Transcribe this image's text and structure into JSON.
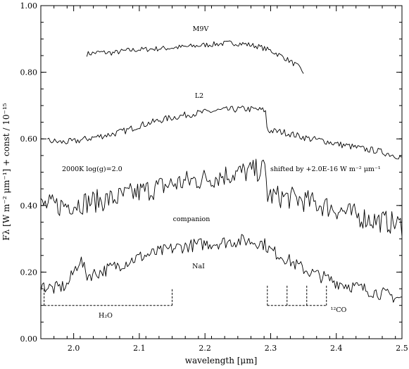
{
  "chart_data": {
    "type": "line",
    "title": "",
    "xlabel": "wavelength [μm]",
    "ylabel": "Fλ [W m⁻² μm⁻¹] + const / 10⁻¹⁵",
    "xlim": [
      1.95,
      2.5
    ],
    "ylim": [
      0.0,
      1.0
    ],
    "x_ticks": [
      2.0,
      2.1,
      2.2,
      2.3,
      2.4,
      2.5
    ],
    "x_tick_labels": [
      "2.0",
      "2.1",
      "2.2",
      "2.3",
      "2.4",
      "2.5"
    ],
    "y_ticks": [
      0.0,
      0.2,
      0.4,
      0.6,
      0.8,
      1.0
    ],
    "y_tick_labels": [
      "0.00",
      "0.20",
      "0.40",
      "0.60",
      "0.80",
      "1.00"
    ],
    "grid": false,
    "series": [
      {
        "name": "M9V",
        "x": [
          2.02,
          2.04,
          2.06,
          2.08,
          2.1,
          2.12,
          2.14,
          2.16,
          2.18,
          2.2,
          2.22,
          2.24,
          2.26,
          2.28,
          2.3,
          2.32,
          2.34,
          2.35
        ],
        "y": [
          0.855,
          0.86,
          0.858,
          0.865,
          0.868,
          0.87,
          0.872,
          0.875,
          0.878,
          0.882,
          0.885,
          0.888,
          0.885,
          0.878,
          0.865,
          0.845,
          0.82,
          0.8
        ],
        "noise": 0.008
      },
      {
        "name": "L2",
        "x": [
          1.96,
          1.98,
          2.0,
          2.02,
          2.04,
          2.06,
          2.08,
          2.1,
          2.12,
          2.14,
          2.16,
          2.18,
          2.2,
          2.22,
          2.24,
          2.26,
          2.28,
          2.292,
          2.295,
          2.32,
          2.34,
          2.36,
          2.38,
          2.4,
          2.42,
          2.44,
          2.46,
          2.48,
          2.5
        ],
        "y": [
          0.595,
          0.59,
          0.592,
          0.6,
          0.608,
          0.615,
          0.625,
          0.64,
          0.65,
          0.66,
          0.668,
          0.675,
          0.68,
          0.685,
          0.688,
          0.69,
          0.688,
          0.685,
          0.625,
          0.62,
          0.61,
          0.6,
          0.595,
          0.585,
          0.578,
          0.57,
          0.565,
          0.555,
          0.545
        ],
        "noise": 0.01
      },
      {
        "name": "2000K log(g)=2.0",
        "x": [
          1.95,
          1.98,
          2.0,
          2.02,
          2.04,
          2.06,
          2.08,
          2.1,
          2.12,
          2.14,
          2.16,
          2.18,
          2.2,
          2.22,
          2.24,
          2.26,
          2.28,
          2.292,
          2.295,
          2.32,
          2.34,
          2.36,
          2.38,
          2.4,
          2.42,
          2.44,
          2.46,
          2.48,
          2.5
        ],
        "y": [
          0.4,
          0.4,
          0.405,
          0.41,
          0.415,
          0.42,
          0.43,
          0.44,
          0.45,
          0.46,
          0.468,
          0.475,
          0.48,
          0.488,
          0.495,
          0.5,
          0.505,
          0.51,
          0.43,
          0.425,
          0.42,
          0.41,
          0.4,
          0.39,
          0.375,
          0.365,
          0.355,
          0.35,
          0.34
        ],
        "noise": 0.035
      },
      {
        "name": "companion",
        "x": [
          1.95,
          1.97,
          1.98,
          1.99,
          2.0,
          2.01,
          2.02,
          2.04,
          2.06,
          2.08,
          2.1,
          2.12,
          2.14,
          2.16,
          2.18,
          2.2,
          2.22,
          2.24,
          2.26,
          2.28,
          2.29,
          2.3,
          2.32,
          2.34,
          2.36,
          2.38,
          2.4,
          2.42,
          2.44,
          2.46,
          2.48,
          2.5
        ],
        "y": [
          0.16,
          0.15,
          0.155,
          0.16,
          0.2,
          0.24,
          0.19,
          0.2,
          0.215,
          0.23,
          0.245,
          0.255,
          0.265,
          0.275,
          0.28,
          0.285,
          0.288,
          0.292,
          0.295,
          0.29,
          0.285,
          0.265,
          0.245,
          0.22,
          0.2,
          0.185,
          0.17,
          0.16,
          0.15,
          0.14,
          0.13,
          0.12
        ],
        "noise": 0.02
      }
    ],
    "annotations": {
      "label_m9v": "M9V",
      "label_l2": "L2",
      "label_model": "2000K log(g)=2.0",
      "label_shift": "shifted by +2.0E-16 W m⁻² μm⁻¹",
      "label_companion": "companion",
      "label_nai": "NaI",
      "label_h2o": "H₂O",
      "label_co": "¹²CO"
    },
    "features": {
      "h2o_band": {
        "x_start": 1.955,
        "x_end": 2.15,
        "y": 0.1,
        "y_top": 0.15
      },
      "co_band": {
        "x_start": 2.295,
        "x_end": 2.385,
        "y": 0.1,
        "y_top": 0.16,
        "heads": [
          2.295,
          2.325,
          2.355,
          2.385
        ]
      }
    }
  }
}
